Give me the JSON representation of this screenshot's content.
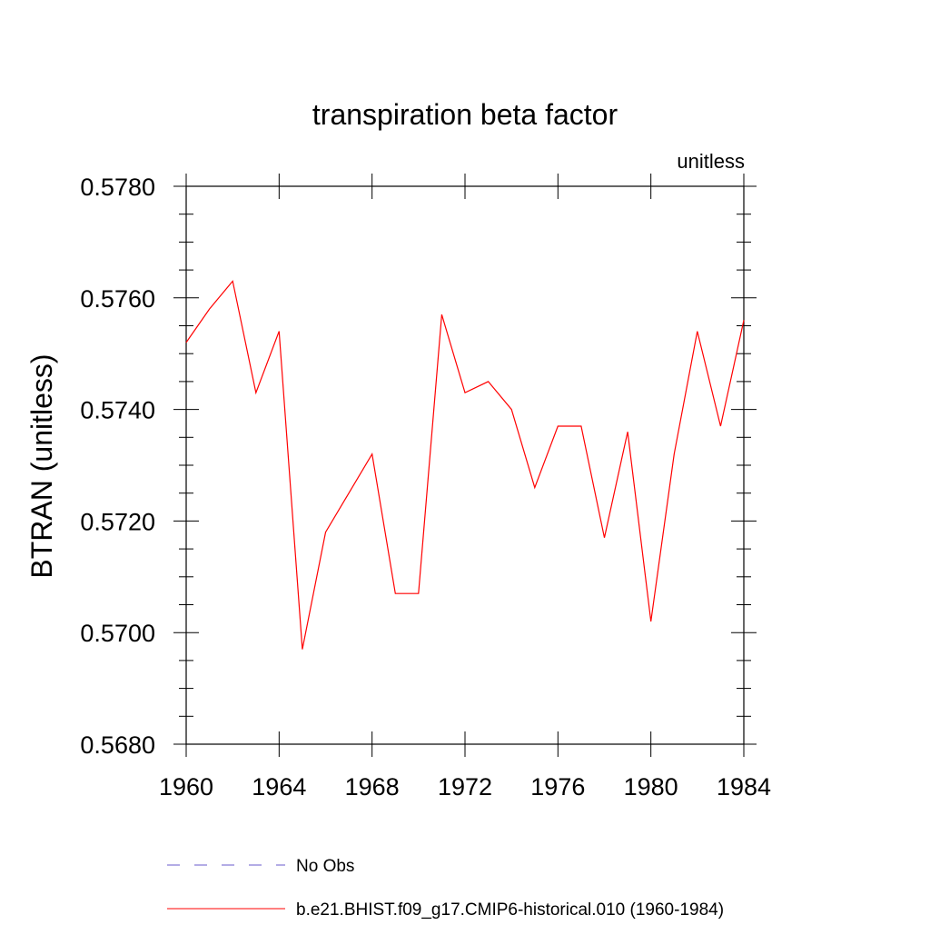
{
  "chart_data": {
    "type": "line",
    "title": "transpiration beta factor",
    "units_label": "unitless",
    "ylabel": "BTRAN  (unitless)",
    "xlabel": "",
    "xlim": [
      1960,
      1984
    ],
    "ylim": [
      0.568,
      0.578
    ],
    "x_ticks": [
      1960,
      1964,
      1968,
      1972,
      1976,
      1980,
      1984
    ],
    "x_tick_labels": [
      "1960",
      "1964",
      "1968",
      "1972",
      "1976",
      "1980",
      "1984"
    ],
    "y_ticks": [
      0.568,
      0.57,
      0.572,
      0.574,
      0.576,
      0.578
    ],
    "y_tick_labels": [
      "0.5680",
      "0.5700",
      "0.5720",
      "0.5740",
      "0.5760",
      "0.5780"
    ],
    "grid": false,
    "legend_position": "bottom",
    "legend": [
      {
        "label": "No Obs",
        "color": "#6a5acd",
        "dash": "dashed"
      },
      {
        "label": "b.e21.BHIST.f09_g17.CMIP6-historical.010 (1960-1984)",
        "color": "#ff0000",
        "dash": "solid"
      }
    ],
    "series": [
      {
        "name": "b.e21.BHIST.f09_g17.CMIP6-historical.010 (1960-1984)",
        "color": "#ff0000",
        "x": [
          1960,
          1961,
          1962,
          1963,
          1964,
          1965,
          1966,
          1967,
          1968,
          1969,
          1970,
          1971,
          1972,
          1973,
          1974,
          1975,
          1976,
          1977,
          1978,
          1979,
          1980,
          1981,
          1982,
          1983,
          1984
        ],
        "y": [
          0.5752,
          0.5758,
          0.5763,
          0.5743,
          0.5754,
          0.5697,
          0.5718,
          0.5725,
          0.5732,
          0.5707,
          0.5707,
          0.5757,
          0.5743,
          0.5745,
          0.574,
          0.5726,
          0.5737,
          0.5737,
          0.5717,
          0.5736,
          0.5702,
          0.5732,
          0.5754,
          0.5737,
          0.5756
        ]
      }
    ]
  }
}
